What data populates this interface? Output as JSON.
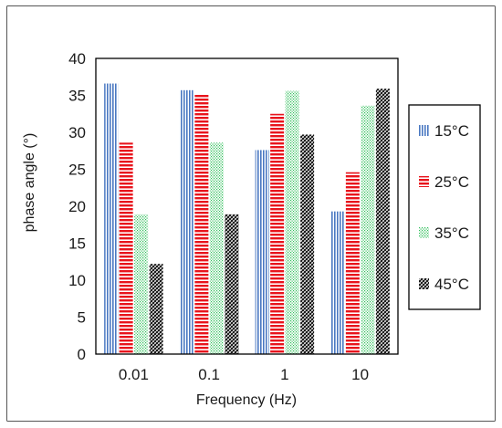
{
  "chart_data": {
    "type": "bar",
    "categories": [
      "0.01",
      "0.1",
      "1",
      "10"
    ],
    "xlabel": "Frequency (Hz)",
    "ylabel": "phase angle (°)",
    "ylim": [
      0,
      40
    ],
    "yticks": [
      0,
      5,
      10,
      15,
      20,
      25,
      30,
      35,
      40
    ],
    "grid": false,
    "legend_position": "right",
    "series": [
      {
        "name": "15°C",
        "values": [
          36.6,
          35.7,
          27.6,
          19.3
        ],
        "color": "#4a78c2",
        "pattern": "vertical-stripes"
      },
      {
        "name": "25°C",
        "values": [
          28.6,
          35.2,
          32.5,
          24.6
        ],
        "color": "#e8141c",
        "pattern": "horizontal-stripes"
      },
      {
        "name": "35°C",
        "values": [
          18.9,
          28.6,
          35.6,
          33.6
        ],
        "color": "#2fbf5a",
        "pattern": "dots"
      },
      {
        "name": "45°C",
        "values": [
          12.2,
          18.9,
          29.7,
          35.9
        ],
        "color": "#111111",
        "pattern": "diagonal-hatch"
      }
    ]
  }
}
